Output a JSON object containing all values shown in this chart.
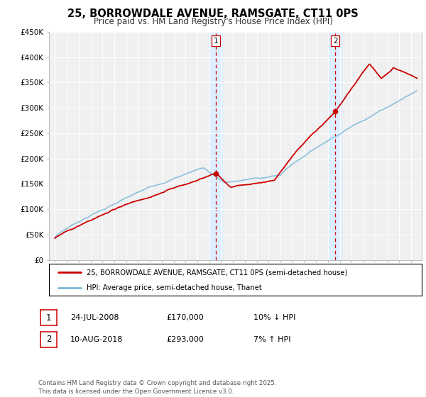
{
  "title": "25, BORROWDALE AVENUE, RAMSGATE, CT11 0PS",
  "subtitle": "Price paid vs. HM Land Registry's House Price Index (HPI)",
  "title_fontsize": 10.5,
  "subtitle_fontsize": 8.5,
  "legend_line1": "25, BORROWDALE AVENUE, RAMSGATE, CT11 0PS (semi-detached house)",
  "legend_line2": "HPI: Average price, semi-detached house, Thanet",
  "sale1_date": "24-JUL-2008",
  "sale1_price": "£170,000",
  "sale1_hpi": "10% ↓ HPI",
  "sale2_date": "10-AUG-2018",
  "sale2_price": "£293,000",
  "sale2_hpi": "7% ↑ HPI",
  "footnote": "Contains HM Land Registry data © Crown copyright and database right 2025.\nThis data is licensed under the Open Government Licence v3.0.",
  "hpi_color": "#7ab8d9",
  "price_color": "#cc0000",
  "vline_color": "#cc0000",
  "vshade_color": "#ddeeff",
  "ylim": [
    0,
    450000
  ],
  "yticks": [
    0,
    50000,
    100000,
    150000,
    200000,
    250000,
    300000,
    350000,
    400000,
    450000
  ],
  "ytick_labels": [
    "£0",
    "£50K",
    "£100K",
    "£150K",
    "£200K",
    "£250K",
    "£300K",
    "£350K",
    "£400K",
    "£450K"
  ],
  "sale1_year": 2008.56,
  "sale2_year": 2018.61,
  "sale1_price_val": 170000,
  "sale2_price_val": 293000,
  "background_color": "#ffffff",
  "plot_bg_color": "#f0f0f0"
}
